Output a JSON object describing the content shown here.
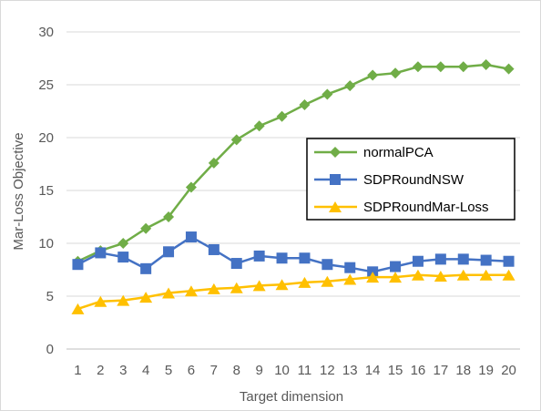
{
  "chart_data": {
    "type": "line",
    "title": "",
    "xlabel": "Target dimension",
    "ylabel": "Mar-Loss Objective",
    "ylim": [
      0,
      30
    ],
    "yticks": [
      0,
      5,
      10,
      15,
      20,
      25,
      30
    ],
    "grid": "horizontal",
    "legend_position": "right-middle",
    "categories": [
      "1",
      "2",
      "3",
      "4",
      "5",
      "6",
      "7",
      "8",
      "9",
      "10",
      "11",
      "12",
      "13",
      "14",
      "15",
      "16",
      "17",
      "18",
      "19",
      "20"
    ],
    "series": [
      {
        "name": "normalPCA",
        "color": "#70ad47",
        "marker": "diamond",
        "values": [
          8.3,
          9.3,
          10.0,
          11.4,
          12.5,
          15.3,
          17.6,
          19.8,
          21.1,
          22.0,
          23.1,
          24.1,
          24.9,
          25.9,
          26.1,
          26.7,
          26.7,
          26.7,
          26.9,
          26.5
        ]
      },
      {
        "name": "SDPRoundNSW",
        "color": "#4472c4",
        "marker": "square",
        "values": [
          8.0,
          9.1,
          8.7,
          7.6,
          9.2,
          10.6,
          9.4,
          8.1,
          8.8,
          8.6,
          8.6,
          8.0,
          7.7,
          7.3,
          7.8,
          8.3,
          8.5,
          8.5,
          8.4,
          8.3
        ]
      },
      {
        "name": "SDPRoundMar-Loss",
        "color": "#ffc000",
        "marker": "triangle",
        "values": [
          3.8,
          4.5,
          4.6,
          4.9,
          5.3,
          5.5,
          5.7,
          5.8,
          6.0,
          6.1,
          6.3,
          6.4,
          6.6,
          6.8,
          6.8,
          7.0,
          6.9,
          7.0,
          7.0,
          7.0
        ]
      }
    ]
  }
}
